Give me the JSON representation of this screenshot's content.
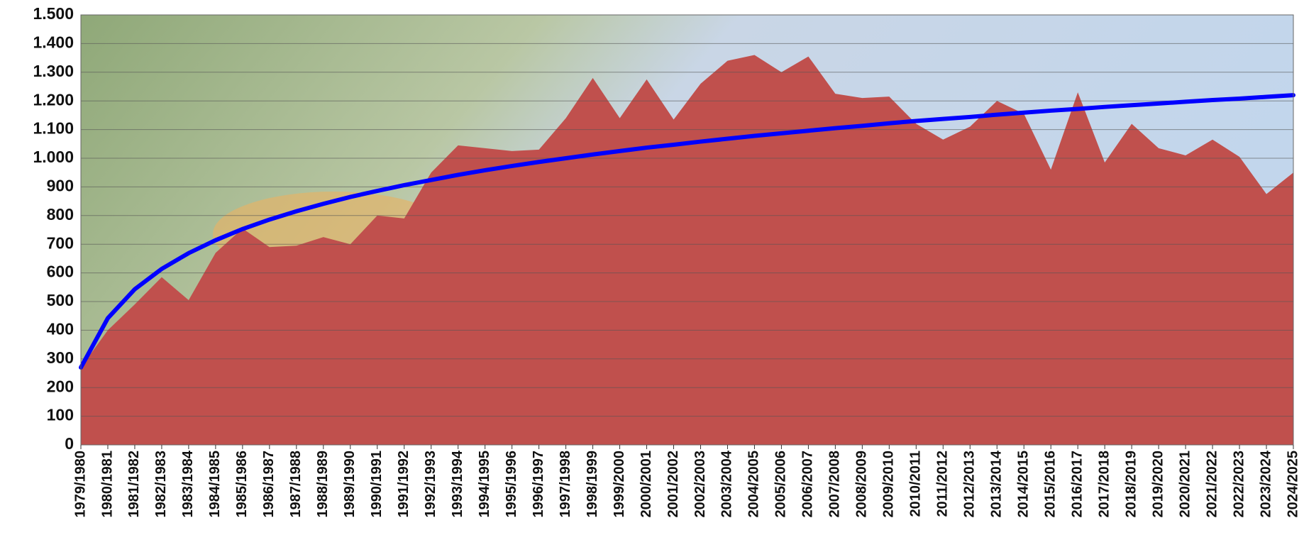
{
  "chart_data": {
    "type": "area",
    "categories": [
      "1979/1980",
      "1980/1981",
      "1981/1982",
      "1982/1983",
      "1983/1984",
      "1984/1985",
      "1985/1986",
      "1986/1987",
      "1987/1988",
      "1988/1989",
      "1989/1990",
      "1990/1991",
      "1991/1992",
      "1992/1993",
      "1993/1994",
      "1994/1995",
      "1995/1996",
      "1996/1997",
      "1997/1998",
      "1998/1999",
      "1999/2000",
      "2000/2001",
      "2001/2002",
      "2002/2003",
      "2003/2004",
      "2004/2005",
      "2005/2006",
      "2006/2007",
      "2007/2008",
      "2008/2009",
      "2009/2010",
      "2010/2011",
      "2011/2012",
      "2012/2013",
      "2013/2014",
      "2014/2015",
      "2015/2016",
      "2016/2017",
      "2017/2018",
      "2018/2019",
      "2019/2020",
      "2020/2021",
      "2021/2022",
      "2022/2023",
      "2023/2024",
      "2024/2025"
    ],
    "series": [
      {
        "type": "area",
        "color": "#c0504d",
        "values": [
          270,
          400,
          490,
          585,
          505,
          670,
          755,
          690,
          695,
          725,
          700,
          800,
          790,
          950,
          1045,
          1035,
          1025,
          1030,
          1140,
          1280,
          1140,
          1275,
          1135,
          1260,
          1340,
          1360,
          1300,
          1355,
          1225,
          1210,
          1215,
          1120,
          1065,
          1110,
          1200,
          1155,
          960,
          1230,
          985,
          1120,
          1035,
          1010,
          1065,
          1005,
          875,
          950
        ]
      },
      {
        "type": "line",
        "color": "#0000ff",
        "values": [
          270,
          442,
          543,
          614,
          669,
          714,
          753,
          786,
          815,
          841,
          865,
          886,
          906,
          924,
          942,
          958,
          973,
          987,
          1000,
          1013,
          1025,
          1037,
          1047,
          1058,
          1068,
          1078,
          1087,
          1096,
          1105,
          1113,
          1122,
          1130,
          1137,
          1144,
          1152,
          1159,
          1166,
          1172,
          1179,
          1185,
          1191,
          1197,
          1203,
          1208,
          1214,
          1220
        ]
      }
    ],
    "ylim": [
      0,
      1500
    ],
    "yticks": [
      0,
      100,
      200,
      300,
      400,
      500,
      600,
      700,
      800,
      900,
      {
        "value": 1000,
        "label": "1.000"
      },
      {
        "value": 1100,
        "label": "1.100"
      },
      {
        "value": 1200,
        "label": "1.200"
      },
      {
        "value": 1300,
        "label": "1.300"
      },
      {
        "value": 1400,
        "label": "1.400"
      },
      {
        "value": 1500,
        "label": "1.500"
      }
    ],
    "grid": true
  }
}
